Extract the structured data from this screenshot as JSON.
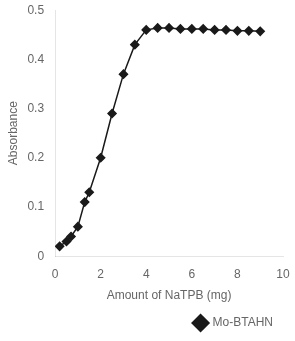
{
  "chart_data": {
    "type": "line",
    "x": [
      0.2,
      0.5,
      0.7,
      1.0,
      1.3,
      1.5,
      2.0,
      2.5,
      3.0,
      3.5,
      4.0,
      4.5,
      5.0,
      5.5,
      6.0,
      6.5,
      7.0,
      7.5,
      8.0,
      8.5,
      9.0
    ],
    "series": [
      {
        "name": "Mo-BTAHN",
        "color": "#1a1a1a",
        "marker": "diamond",
        "values": [
          0.02,
          0.03,
          0.04,
          0.06,
          0.11,
          0.13,
          0.2,
          0.29,
          0.37,
          0.43,
          0.46,
          0.464,
          0.464,
          0.462,
          0.462,
          0.462,
          0.46,
          0.46,
          0.458,
          0.458,
          0.457
        ]
      }
    ],
    "xlabel": "Amount of NaTPB (mg)",
    "ylabel": "Absorbance",
    "xlim": [
      0,
      10
    ],
    "ylim": [
      0,
      0.5
    ],
    "xticks": [
      0,
      2,
      4,
      6,
      8,
      10
    ],
    "yticks": [
      0,
      0.1,
      0.2,
      0.3,
      0.4,
      0.5
    ],
    "grid": false,
    "legend": "lower right"
  }
}
